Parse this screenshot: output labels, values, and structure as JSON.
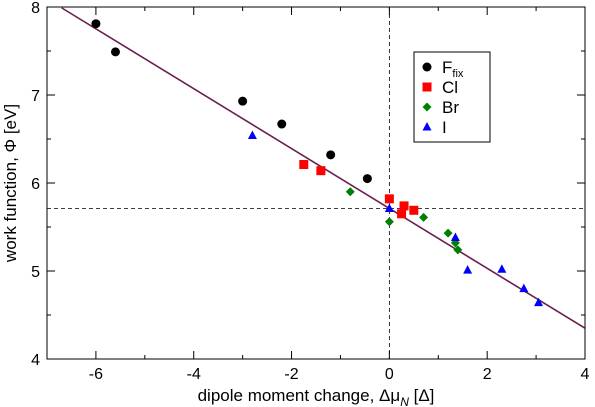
{
  "chart_data": {
    "type": "scatter",
    "xlabel": "dipole moment change, Δμ",
    "xlabel_sub": "N",
    "xlabel_unit": " [Δ]",
    "ylabel": "work function, Φ [eV]",
    "xlim": [
      -7,
      4
    ],
    "ylim": [
      4,
      8
    ],
    "xticks": [
      -6,
      -4,
      -2,
      0,
      2,
      4
    ],
    "yticks": [
      4,
      5,
      6,
      7,
      8
    ],
    "xtick_labels": [
      "-6",
      "-4",
      "-2",
      "0",
      "2",
      "4"
    ],
    "ytick_labels": [
      "4",
      "5",
      "6",
      "7",
      "8"
    ],
    "reference_lines": {
      "x": 0,
      "y": 5.71
    },
    "fit_line": {
      "x": [
        -6.7,
        4.0
      ],
      "y": [
        7.99,
        4.35
      ],
      "color": "#6b1f4f"
    },
    "legend_position": "upper-right",
    "series": [
      {
        "name": "F",
        "name_sub": "fix",
        "marker": "circle",
        "color": "#000000",
        "x": [
          -6.0,
          -5.6,
          -3.0,
          -2.2,
          -1.2,
          -0.45
        ],
        "y": [
          7.81,
          7.49,
          6.93,
          6.67,
          6.32,
          6.05
        ]
      },
      {
        "name": "Cl",
        "marker": "square",
        "color": "#ff0000",
        "x": [
          -1.75,
          -1.4,
          0.0,
          0.3,
          0.5,
          0.25
        ],
        "y": [
          6.21,
          6.14,
          5.82,
          5.74,
          5.69,
          5.65
        ]
      },
      {
        "name": "Br",
        "marker": "diamond",
        "color": "#008000",
        "x": [
          -0.8,
          0.0,
          0.7,
          1.2,
          1.35,
          1.4
        ],
        "y": [
          5.9,
          5.56,
          5.61,
          5.43,
          5.32,
          5.24
        ]
      },
      {
        "name": "I",
        "marker": "triangle",
        "color": "#0000ff",
        "x": [
          -2.8,
          0.0,
          1.35,
          1.6,
          2.3,
          2.75,
          3.05
        ],
        "y": [
          6.54,
          5.71,
          5.38,
          5.01,
          5.02,
          4.8,
          4.64
        ]
      }
    ]
  }
}
